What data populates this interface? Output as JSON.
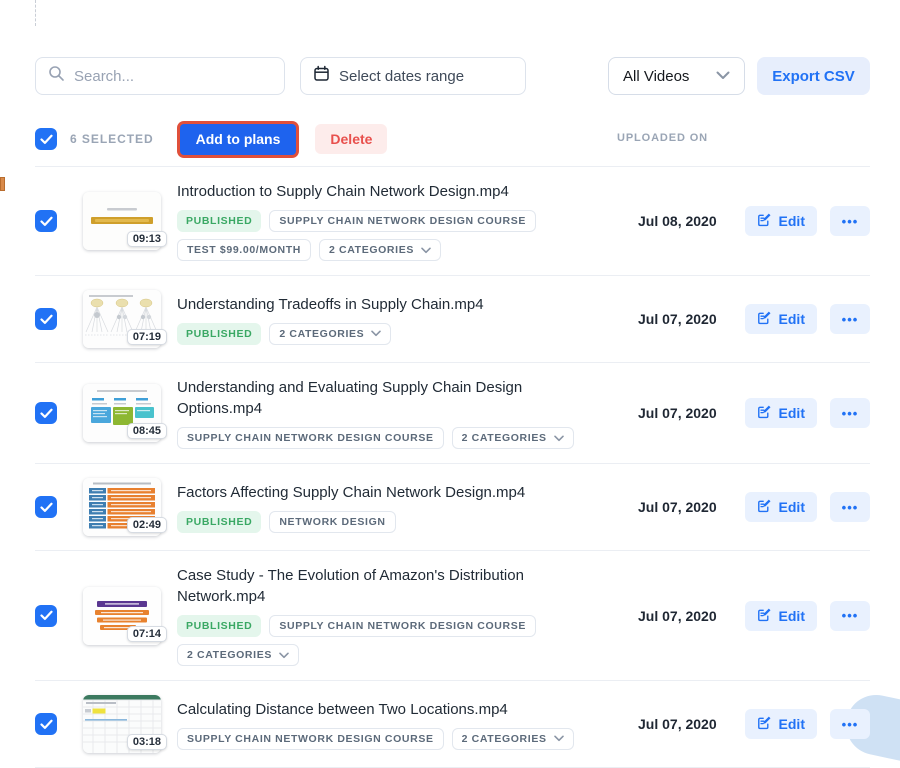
{
  "toolbar": {
    "search_placeholder": "Search...",
    "date_range_placeholder": "Select dates range",
    "videos_filter_value": "All Videos",
    "export_csv_label": "Export CSV"
  },
  "selection_bar": {
    "selected_count": "6 SELECTED",
    "add_to_plans_label": "Add to plans",
    "delete_label": "Delete"
  },
  "list_header": {
    "uploaded_on": "UPLOADED ON"
  },
  "row_actions": {
    "edit_label": "Edit",
    "more_label": "•••"
  },
  "icons": {
    "search": "magnifier",
    "calendar": "calendar",
    "chevron_down": "⌄",
    "checkbox_check": "✓",
    "edit": "document-with-pencil",
    "more": "three-dots"
  },
  "videos": [
    {
      "title": "Introduction to Supply Chain Network Design.mp4",
      "duration": "09:13",
      "uploaded_on": "Jul 08, 2020",
      "thumb": "slide-gold-bar",
      "checked": true,
      "badges": [
        {
          "label": "PUBLISHED",
          "type": "published"
        },
        {
          "label": "SUPPLY CHAIN NETWORK DESIGN COURSE",
          "type": "outline"
        },
        {
          "label": "TEST $99.00/MONTH",
          "type": "outline"
        },
        {
          "label": "2 CATEGORIES",
          "type": "dropdown"
        }
      ]
    },
    {
      "title": "Understanding Tradeoffs in Supply Chain.mp4",
      "duration": "07:19",
      "uploaded_on": "Jul 07, 2020",
      "thumb": "network-diagram",
      "checked": true,
      "badges": [
        {
          "label": "PUBLISHED",
          "type": "published"
        },
        {
          "label": "2 CATEGORIES",
          "type": "dropdown"
        }
      ]
    },
    {
      "title": "Understanding and Evaluating Supply Chain Design Options.mp4",
      "duration": "08:45",
      "uploaded_on": "Jul 07, 2020",
      "thumb": "pricing-columns",
      "checked": true,
      "badges": [
        {
          "label": "SUPPLY CHAIN NETWORK DESIGN COURSE",
          "type": "outline"
        },
        {
          "label": "2 CATEGORIES",
          "type": "dropdown"
        }
      ]
    },
    {
      "title": "Factors Affecting Supply Chain Network Design.mp4",
      "duration": "02:49",
      "uploaded_on": "Jul 07, 2020",
      "thumb": "comparison-table",
      "checked": true,
      "badges": [
        {
          "label": "PUBLISHED",
          "type": "published"
        },
        {
          "label": "NETWORK DESIGN",
          "type": "outline"
        }
      ]
    },
    {
      "title": "Case Study - The Evolution of Amazon's Distribution Network.mp4",
      "duration": "07:14",
      "uploaded_on": "Jul 07, 2020",
      "thumb": "case-study-slide",
      "checked": true,
      "badges": [
        {
          "label": "PUBLISHED",
          "type": "published"
        },
        {
          "label": "SUPPLY CHAIN NETWORK DESIGN COURSE",
          "type": "outline"
        },
        {
          "label": "2 CATEGORIES",
          "type": "dropdown"
        }
      ]
    },
    {
      "title": "Calculating Distance between Two Locations.mp4",
      "duration": "03:18",
      "uploaded_on": "Jul 07, 2020",
      "thumb": "spreadsheet",
      "checked": true,
      "badges": [
        {
          "label": "SUPPLY CHAIN NETWORK DESIGN COURSE",
          "type": "outline"
        },
        {
          "label": "2 CATEGORIES",
          "type": "dropdown"
        }
      ]
    }
  ],
  "colors": {
    "accent_blue": "#2172f5",
    "accent_blue_bg": "#e9f1fe",
    "add_to_plans_bg": "#1e63ee",
    "annotation_red": "#e0503b",
    "published_green": "#3aa864",
    "published_green_bg": "#e4f6ec",
    "delete_red": "#e8504d",
    "delete_red_bg": "#fdeceb",
    "muted_text": "#9aa5b5",
    "badge_text": "#5c6a7a",
    "divider": "#ebeef3"
  }
}
